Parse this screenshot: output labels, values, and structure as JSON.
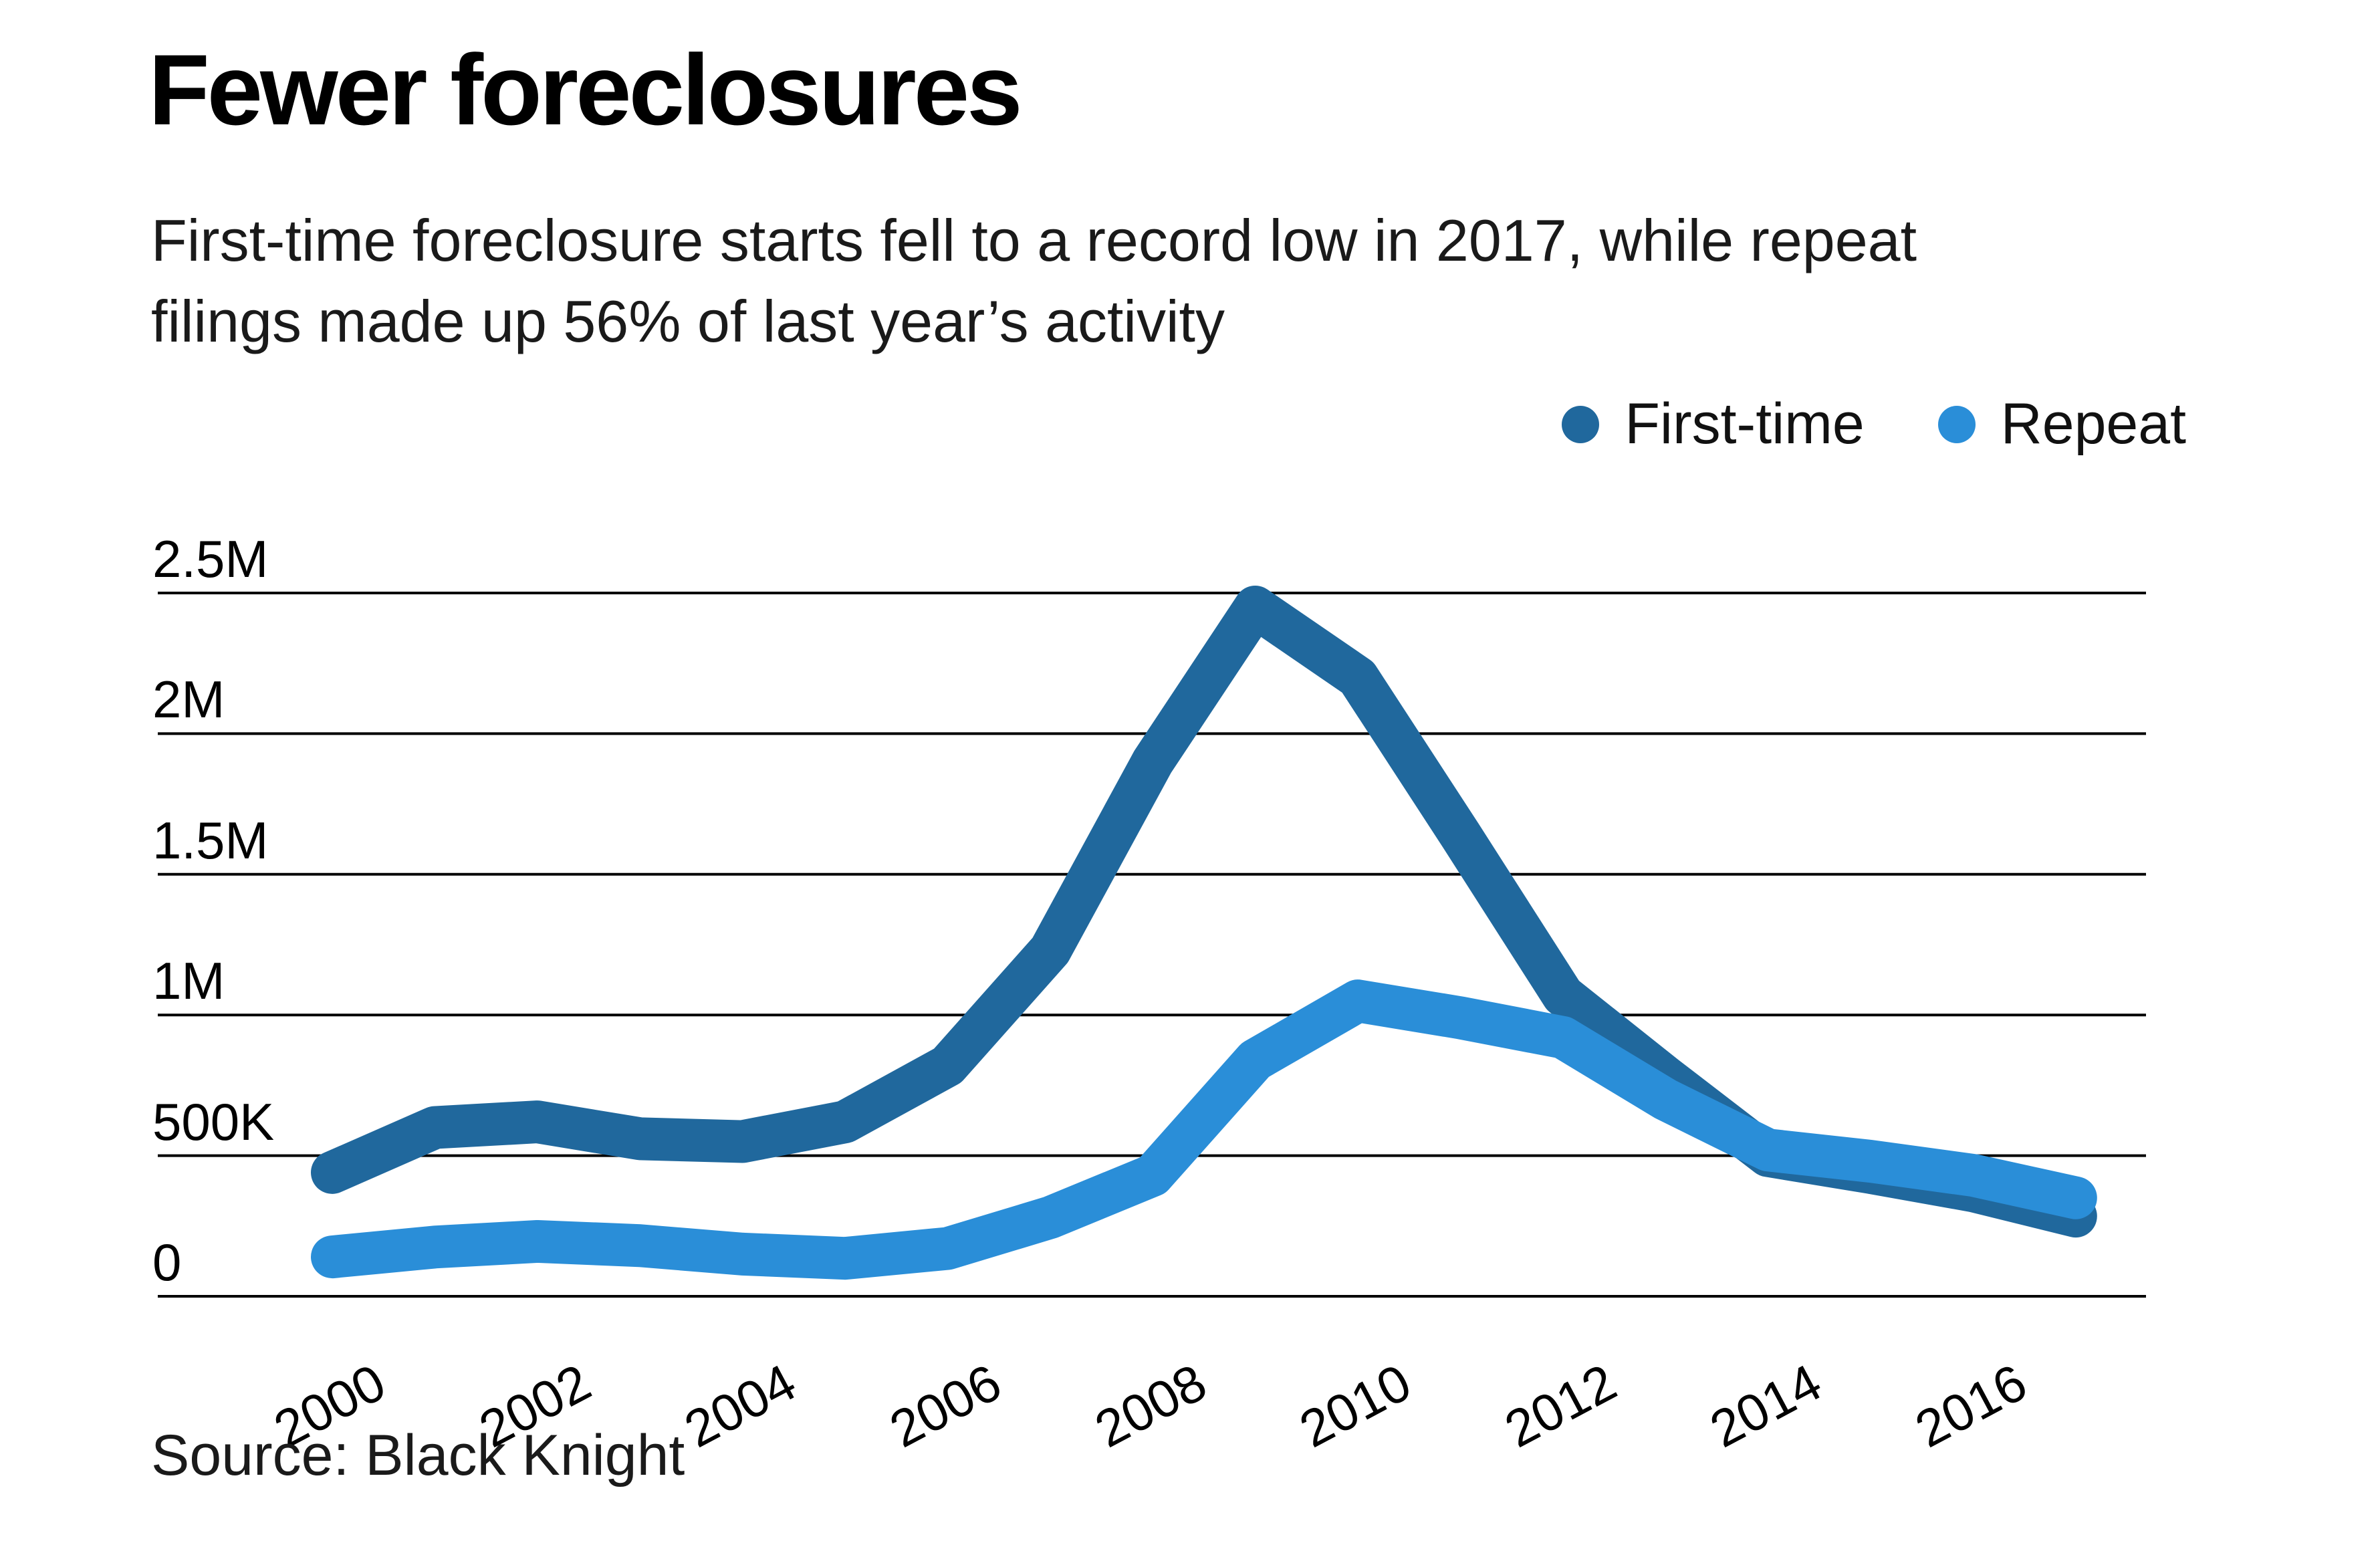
{
  "header": {
    "title": "Fewer foreclosures",
    "subtitle": "First-time foreclosure starts fell to a record low in 2017, while repeat filings made up 56% of last year’s activity"
  },
  "source": {
    "label": "Source: Black Knight"
  },
  "chart_data": {
    "type": "line",
    "title": "Fewer foreclosures",
    "xlabel": "",
    "ylabel": "",
    "x": [
      2000,
      2001,
      2002,
      2003,
      2004,
      2005,
      2006,
      2007,
      2008,
      2009,
      2010,
      2011,
      2012,
      2013,
      2014,
      2015,
      2016,
      2017
    ],
    "series": [
      {
        "name": "First-time",
        "color": "#20689d",
        "values": [
          440000,
          600000,
          620000,
          560000,
          550000,
          620000,
          820000,
          1230000,
          1900000,
          2450000,
          2200000,
          1640000,
          1070000,
          780000,
          500000,
          440000,
          375000,
          285000
        ]
      },
      {
        "name": "Repeat",
        "color": "#2a8ed8",
        "values": [
          140000,
          175000,
          195000,
          180000,
          150000,
          135000,
          170000,
          280000,
          430000,
          840000,
          1050000,
          990000,
          920000,
          700000,
          520000,
          480000,
          430000,
          350000
        ]
      }
    ],
    "ylim": [
      0,
      2500000
    ],
    "yticks": [
      {
        "value": 2500000,
        "label": "2.5M"
      },
      {
        "value": 2000000,
        "label": "2M"
      },
      {
        "value": 1500000,
        "label": "1.5M"
      },
      {
        "value": 1000000,
        "label": "1M"
      },
      {
        "value": 500000,
        "label": "500K"
      },
      {
        "value": 0,
        "label": "0"
      }
    ],
    "xticks": [
      {
        "value": 2000,
        "label": "2000"
      },
      {
        "value": 2002,
        "label": "2002"
      },
      {
        "value": 2004,
        "label": "2004"
      },
      {
        "value": 2006,
        "label": "2006"
      },
      {
        "value": 2008,
        "label": "2008"
      },
      {
        "value": 2010,
        "label": "2010"
      },
      {
        "value": 2012,
        "label": "2012"
      },
      {
        "value": 2014,
        "label": "2014"
      },
      {
        "value": 2016,
        "label": "2016"
      }
    ],
    "grid": true,
    "gridline_color": "#000000",
    "legend_position": "top-right"
  }
}
